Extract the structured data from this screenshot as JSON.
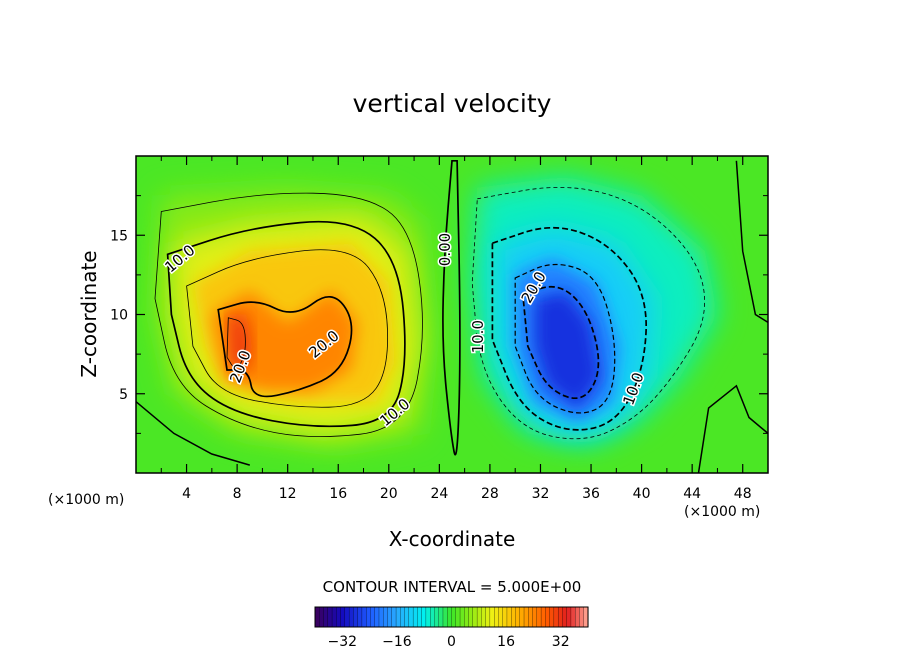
{
  "chart_data": {
    "type": "heatmap",
    "title": "vertical velocity",
    "xlabel": "X-coordinate",
    "ylabel": "Z-coordinate",
    "x_unit_left": "(×1000 m)",
    "x_unit_right": "(×1000 m)",
    "xlim": [
      0,
      50
    ],
    "ylim": [
      0,
      20
    ],
    "x_ticks": [
      4,
      8,
      12,
      16,
      20,
      24,
      28,
      32,
      36,
      40,
      44,
      48
    ],
    "x_tick_labels": [
      "4",
      "8",
      "12",
      "16",
      "20",
      "24",
      "28",
      "32",
      "36",
      "40",
      "44",
      "48"
    ],
    "y_ticks": [
      5,
      10,
      15
    ],
    "y_tick_labels": [
      "5",
      "10",
      "15"
    ],
    "contour_interval_text": "CONTOUR INTERVAL = 5.000E+00",
    "contour_interval": 5,
    "contour_labels": [
      {
        "text": "10.0",
        "x": 3.5,
        "y": 13.5,
        "angle": -40
      },
      {
        "text": "20.0",
        "x": 8.3,
        "y": 6.7,
        "angle": -70
      },
      {
        "text": "20.0",
        "x": 14.9,
        "y": 8.1,
        "angle": -40
      },
      {
        "text": "10.0",
        "x": 20.5,
        "y": 3.8,
        "angle": -40
      },
      {
        "text": "0.00",
        "x": 24.5,
        "y": 14.1,
        "angle": -90
      },
      {
        "text": "20.0",
        "x": 31.5,
        "y": 11.7,
        "angle": -60
      },
      {
        "text": "10.0",
        "x": 27.1,
        "y": 8.6,
        "angle": -90
      },
      {
        "text": "10.0",
        "x": 39.4,
        "y": 5.3,
        "angle": -70
      }
    ],
    "field_features": [
      {
        "name": "updraft",
        "x": 8.5,
        "z": 8.5,
        "peak": 32
      },
      {
        "name": "updraft-secondary",
        "x": 13.5,
        "z": 8.0,
        "peak": 27
      },
      {
        "name": "downdraft",
        "x": 34.0,
        "z": 8.0,
        "peak": -28
      }
    ],
    "colorbar": {
      "min": -40,
      "max": 40,
      "ticks": [
        -32,
        -16,
        0,
        16,
        32
      ],
      "tick_labels": [
        "−32",
        "−16",
        "0",
        "16",
        "32"
      ]
    },
    "legend_position": "bottom-center",
    "grid": false
  }
}
